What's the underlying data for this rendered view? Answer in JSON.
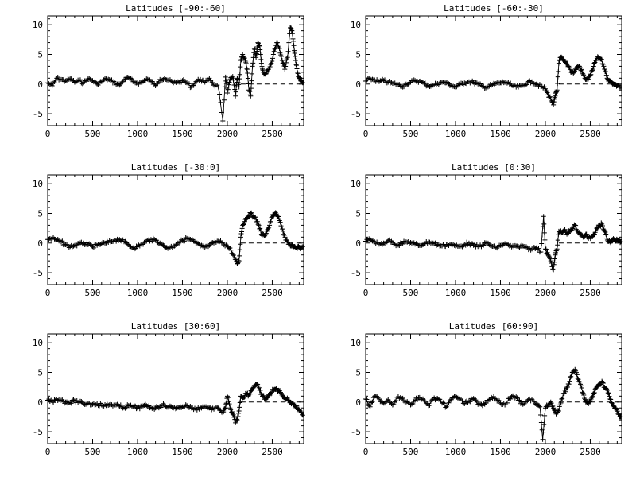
{
  "chart_data": [
    {
      "type": "scatter",
      "title": "Latitudes [-90:-60]",
      "xlim": [
        0,
        2850
      ],
      "ylim": [
        -7,
        11.5
      ],
      "xticks": [
        0,
        500,
        1000,
        1500,
        2000,
        2500
      ],
      "yticks": [
        -5,
        0,
        5,
        10
      ],
      "marker": "+",
      "reference_line": {
        "y": 0,
        "x_from": 2150,
        "style": "dashed"
      },
      "series": [
        {
          "x": [
            0,
            50,
            100,
            150,
            200,
            250,
            300,
            350,
            400,
            450,
            500,
            550,
            600,
            650,
            700,
            750,
            800,
            850,
            900,
            950,
            1000,
            1050,
            1100,
            1150,
            1200,
            1250,
            1300,
            1350,
            1400,
            1450,
            1500,
            1550,
            1600,
            1650,
            1700,
            1750,
            1800,
            1850,
            1900,
            1950,
            1980,
            2000,
            2030,
            2060,
            2090,
            2110,
            2130,
            2150,
            2170,
            2200,
            2220,
            2240,
            2260,
            2280,
            2300,
            2320,
            2340,
            2360,
            2380,
            2400,
            2430,
            2460,
            2490,
            2520,
            2550,
            2580,
            2610,
            2640,
            2670,
            2700,
            2720,
            2740,
            2760,
            2780,
            2800,
            2820,
            2840
          ],
          "y": [
            0.2,
            -0.3,
            1.0,
            0.8,
            0.5,
            0.9,
            0.3,
            0.6,
            0.2,
            0.9,
            0.6,
            0.0,
            0.4,
            0.9,
            0.6,
            0.2,
            -0.2,
            0.8,
            1.1,
            0.4,
            0.2,
            0.3,
            0.9,
            0.5,
            -0.3,
            0.8,
            1.0,
            0.6,
            0.2,
            0.4,
            0.6,
            0.2,
            -0.5,
            0.4,
            0.8,
            0.3,
            1.0,
            -0.2,
            -0.5,
            -6.2,
            1.2,
            -1.5,
            0.8,
            1.3,
            -2.0,
            1.0,
            -0.5,
            4.0,
            5.0,
            4.0,
            2.5,
            -1.0,
            -2.0,
            3.0,
            6.0,
            4.5,
            7.0,
            6.5,
            3.5,
            2.0,
            1.8,
            2.5,
            3.5,
            5.5,
            7.0,
            6.0,
            4.0,
            2.5,
            4.5,
            9.5,
            9.0,
            6.5,
            4.0,
            2.0,
            1.0,
            0.5,
            0.2
          ]
        }
      ]
    },
    {
      "type": "scatter",
      "title": "Latitudes [-60:-30]",
      "xlim": [
        0,
        2850
      ],
      "ylim": [
        -7,
        11.5
      ],
      "xticks": [
        0,
        500,
        1000,
        1500,
        2000,
        2500
      ],
      "yticks": [
        -5,
        0,
        5,
        10
      ],
      "marker": "+",
      "reference_line": {
        "y": 0,
        "x_from": 2150,
        "style": "dashed"
      },
      "series": [
        {
          "x": [
            0,
            50,
            100,
            150,
            200,
            250,
            300,
            350,
            400,
            450,
            500,
            550,
            600,
            650,
            700,
            750,
            800,
            850,
            900,
            950,
            1000,
            1050,
            1100,
            1150,
            1200,
            1250,
            1300,
            1350,
            1400,
            1450,
            1500,
            1550,
            1600,
            1650,
            1700,
            1750,
            1800,
            1850,
            1900,
            1950,
            2000,
            2030,
            2060,
            2090,
            2110,
            2130,
            2150,
            2170,
            2200,
            2230,
            2260,
            2290,
            2320,
            2350,
            2380,
            2410,
            2440,
            2470,
            2500,
            2530,
            2560,
            2590,
            2620,
            2650,
            2680,
            2710,
            2740,
            2770,
            2800,
            2840
          ],
          "y": [
            0.5,
            0.9,
            0.7,
            0.4,
            0.6,
            0.3,
            0.1,
            0.0,
            -0.4,
            0.0,
            0.3,
            0.6,
            0.5,
            0.1,
            -0.3,
            -0.2,
            0.1,
            0.3,
            0.2,
            -0.2,
            -0.5,
            -0.1,
            0.2,
            0.4,
            0.3,
            0.0,
            -0.4,
            -0.5,
            -0.2,
            0.1,
            0.2,
            0.3,
            0.0,
            -0.4,
            -0.5,
            -0.2,
            0.2,
            0.4,
            0.0,
            -0.4,
            -0.8,
            -1.8,
            -2.5,
            -3.5,
            -2.0,
            -1.0,
            3.5,
            4.5,
            4.0,
            3.5,
            3.0,
            2.0,
            2.0,
            2.8,
            3.0,
            2.0,
            1.0,
            0.8,
            1.5,
            2.5,
            4.0,
            4.5,
            4.2,
            3.0,
            1.5,
            0.5,
            0.3,
            0.0,
            -0.3,
            -0.5
          ]
        }
      ]
    },
    {
      "type": "scatter",
      "title": "Latitudes [-30:0]",
      "xlim": [
        0,
        2850
      ],
      "ylim": [
        -7,
        11.5
      ],
      "xticks": [
        0,
        500,
        1000,
        1500,
        2000,
        2500
      ],
      "yticks": [
        -5,
        0,
        5,
        10
      ],
      "marker": "+",
      "reference_line": {
        "y": 0,
        "x_from": 2150,
        "style": "dashed"
      },
      "series": [
        {
          "x": [
            0,
            50,
            100,
            150,
            200,
            250,
            300,
            350,
            400,
            450,
            500,
            550,
            600,
            650,
            700,
            750,
            800,
            850,
            900,
            950,
            1000,
            1050,
            1100,
            1150,
            1200,
            1250,
            1300,
            1350,
            1400,
            1450,
            1500,
            1550,
            1600,
            1650,
            1700,
            1750,
            1800,
            1850,
            1900,
            1950,
            2000,
            2040,
            2080,
            2110,
            2130,
            2150,
            2170,
            2200,
            2230,
            2260,
            2290,
            2320,
            2350,
            2380,
            2410,
            2440,
            2470,
            2500,
            2530,
            2560,
            2590,
            2620,
            2650,
            2680,
            2710,
            2740,
            2770,
            2800,
            2840
          ],
          "y": [
            0.6,
            0.8,
            0.5,
            0.2,
            -0.3,
            -0.6,
            -0.4,
            -0.2,
            0.0,
            -0.3,
            -0.6,
            -0.4,
            -0.1,
            0.0,
            0.2,
            0.5,
            0.6,
            0.2,
            -0.3,
            -0.8,
            -0.6,
            -0.2,
            0.3,
            0.6,
            0.5,
            0.0,
            -0.6,
            -0.8,
            -0.5,
            0.0,
            0.4,
            0.8,
            0.5,
            0.0,
            -0.5,
            -0.7,
            -0.4,
            0.0,
            0.3,
            0.0,
            -0.5,
            -1.2,
            -2.5,
            -3.5,
            -3.0,
            1.0,
            3.0,
            4.0,
            4.5,
            5.0,
            4.5,
            4.0,
            3.0,
            1.5,
            1.2,
            2.0,
            3.0,
            4.5,
            5.0,
            4.5,
            3.5,
            2.0,
            0.5,
            -0.2,
            -0.5,
            -0.6,
            -0.8,
            -0.7,
            -0.6
          ]
        }
      ]
    },
    {
      "type": "scatter",
      "title": "Latitudes [0:30]",
      "xlim": [
        0,
        2850
      ],
      "ylim": [
        -7,
        11.5
      ],
      "xticks": [
        0,
        500,
        1000,
        1500,
        2000,
        2500
      ],
      "yticks": [
        -5,
        0,
        5,
        10
      ],
      "marker": "+",
      "reference_line": {
        "y": 0,
        "x_from": 2150,
        "style": "dashed"
      },
      "series": [
        {
          "x": [
            0,
            50,
            100,
            150,
            200,
            250,
            300,
            350,
            400,
            450,
            500,
            550,
            600,
            650,
            700,
            750,
            800,
            850,
            900,
            950,
            1000,
            1050,
            1100,
            1150,
            1200,
            1250,
            1300,
            1350,
            1400,
            1450,
            1500,
            1550,
            1600,
            1650,
            1700,
            1750,
            1800,
            1850,
            1900,
            1950,
            1980,
            2000,
            2030,
            2060,
            2090,
            2110,
            2130,
            2150,
            2180,
            2210,
            2240,
            2270,
            2300,
            2330,
            2360,
            2390,
            2420,
            2450,
            2480,
            2510,
            2540,
            2570,
            2600,
            2630,
            2660,
            2690,
            2720,
            2750,
            2780,
            2810,
            2840
          ],
          "y": [
            0.3,
            0.6,
            0.2,
            -0.2,
            0.0,
            0.4,
            0.1,
            -0.3,
            -0.1,
            0.2,
            0.1,
            -0.2,
            -0.4,
            -0.1,
            0.2,
            0.0,
            -0.3,
            -0.5,
            -0.3,
            -0.2,
            -0.5,
            -0.6,
            -0.2,
            0.0,
            -0.4,
            -0.6,
            -0.3,
            0.0,
            -0.5,
            -0.8,
            -0.4,
            -0.1,
            -0.5,
            -0.7,
            -0.6,
            -0.5,
            -0.8,
            -1.0,
            -0.8,
            -1.5,
            4.5,
            -1.0,
            -2.0,
            -3.0,
            -4.5,
            -2.0,
            -1.0,
            2.0,
            1.8,
            2.2,
            1.5,
            2.0,
            2.5,
            3.0,
            2.0,
            1.5,
            1.0,
            1.5,
            0.8,
            1.0,
            1.5,
            2.5,
            3.0,
            3.2,
            2.0,
            0.5,
            0.2,
            0.6,
            0.3,
            0.5,
            0.2
          ]
        }
      ]
    },
    {
      "type": "scatter",
      "title": "Latitudes [30:60]",
      "xlim": [
        0,
        2850
      ],
      "ylim": [
        -7,
        11.5
      ],
      "xticks": [
        0,
        500,
        1000,
        1500,
        2000,
        2500
      ],
      "yticks": [
        -5,
        0,
        5,
        10
      ],
      "marker": "+",
      "reference_line": {
        "y": 0,
        "x_from": 2150,
        "style": "dashed"
      },
      "series": [
        {
          "x": [
            0,
            50,
            100,
            150,
            200,
            250,
            300,
            350,
            400,
            450,
            500,
            550,
            600,
            650,
            700,
            750,
            800,
            850,
            900,
            950,
            1000,
            1050,
            1100,
            1150,
            1200,
            1250,
            1300,
            1350,
            1400,
            1450,
            1500,
            1550,
            1600,
            1650,
            1700,
            1750,
            1800,
            1850,
            1900,
            1950,
            1980,
            2000,
            2030,
            2060,
            2090,
            2110,
            2130,
            2150,
            2180,
            2210,
            2240,
            2270,
            2300,
            2330,
            2360,
            2390,
            2420,
            2450,
            2480,
            2510,
            2540,
            2570,
            2600,
            2630,
            2660,
            2690,
            2720,
            2750,
            2780,
            2810,
            2840
          ],
          "y": [
            0.3,
            0.1,
            0.5,
            0.3,
            0.0,
            -0.1,
            0.2,
            0.0,
            -0.3,
            -0.2,
            -0.4,
            -0.3,
            -0.5,
            -0.6,
            -0.4,
            -0.5,
            -0.7,
            -0.9,
            -0.6,
            -0.8,
            -1.0,
            -0.8,
            -0.6,
            -0.9,
            -1.0,
            -0.7,
            -0.5,
            -0.8,
            -1.0,
            -0.9,
            -0.8,
            -0.6,
            -1.0,
            -1.2,
            -0.9,
            -0.8,
            -1.0,
            -1.2,
            -1.0,
            -1.8,
            -1.0,
            1.0,
            -1.0,
            -2.0,
            -3.5,
            -3.0,
            -1.5,
            1.0,
            0.8,
            1.5,
            1.2,
            2.0,
            2.8,
            3.0,
            2.0,
            1.0,
            0.5,
            0.8,
            1.5,
            2.0,
            2.2,
            2.0,
            1.5,
            0.8,
            0.5,
            0.2,
            -0.2,
            -0.5,
            -1.0,
            -1.5,
            -2.2
          ]
        }
      ]
    },
    {
      "type": "scatter",
      "title": "Latitudes [60:90]",
      "xlim": [
        0,
        2850
      ],
      "ylim": [
        -7,
        11.5
      ],
      "xticks": [
        0,
        500,
        1000,
        1500,
        2000,
        2500
      ],
      "yticks": [
        -5,
        0,
        5,
        10
      ],
      "marker": "+",
      "reference_line": {
        "y": 0,
        "x_from": 2150,
        "style": "dashed"
      },
      "series": [
        {
          "x": [
            0,
            50,
            100,
            150,
            200,
            250,
            300,
            350,
            400,
            450,
            500,
            550,
            600,
            650,
            700,
            750,
            800,
            850,
            900,
            950,
            1000,
            1050,
            1100,
            1150,
            1200,
            1250,
            1300,
            1350,
            1400,
            1450,
            1500,
            1550,
            1600,
            1650,
            1700,
            1750,
            1800,
            1850,
            1900,
            1940,
            1970,
            2000,
            2030,
            2060,
            2090,
            2120,
            2150,
            2180,
            2210,
            2240,
            2270,
            2300,
            2330,
            2360,
            2390,
            2420,
            2450,
            2480,
            2510,
            2540,
            2570,
            2600,
            2630,
            2660,
            2690,
            2720,
            2750,
            2780,
            2810,
            2840
          ],
          "y": [
            0.5,
            -0.8,
            1.0,
            0.5,
            -0.2,
            0.4,
            -0.5,
            0.8,
            0.6,
            0.0,
            -0.5,
            0.3,
            0.8,
            0.2,
            -0.6,
            0.5,
            0.6,
            -0.2,
            -0.8,
            0.4,
            1.0,
            0.5,
            -0.3,
            0.2,
            0.6,
            -0.4,
            -0.6,
            0.3,
            0.8,
            0.5,
            -0.2,
            -0.5,
            0.6,
            1.0,
            0.3,
            -0.4,
            0.2,
            0.5,
            -0.4,
            -0.8,
            -6.3,
            -1.0,
            -0.5,
            0.0,
            -1.0,
            -2.0,
            -1.5,
            0.5,
            1.5,
            2.5,
            3.5,
            5.0,
            5.5,
            4.0,
            3.0,
            1.5,
            0.0,
            -0.3,
            0.5,
            1.5,
            2.5,
            3.0,
            3.5,
            2.5,
            2.0,
            0.5,
            -0.5,
            -1.0,
            -2.0,
            -2.5
          ]
        }
      ]
    }
  ]
}
